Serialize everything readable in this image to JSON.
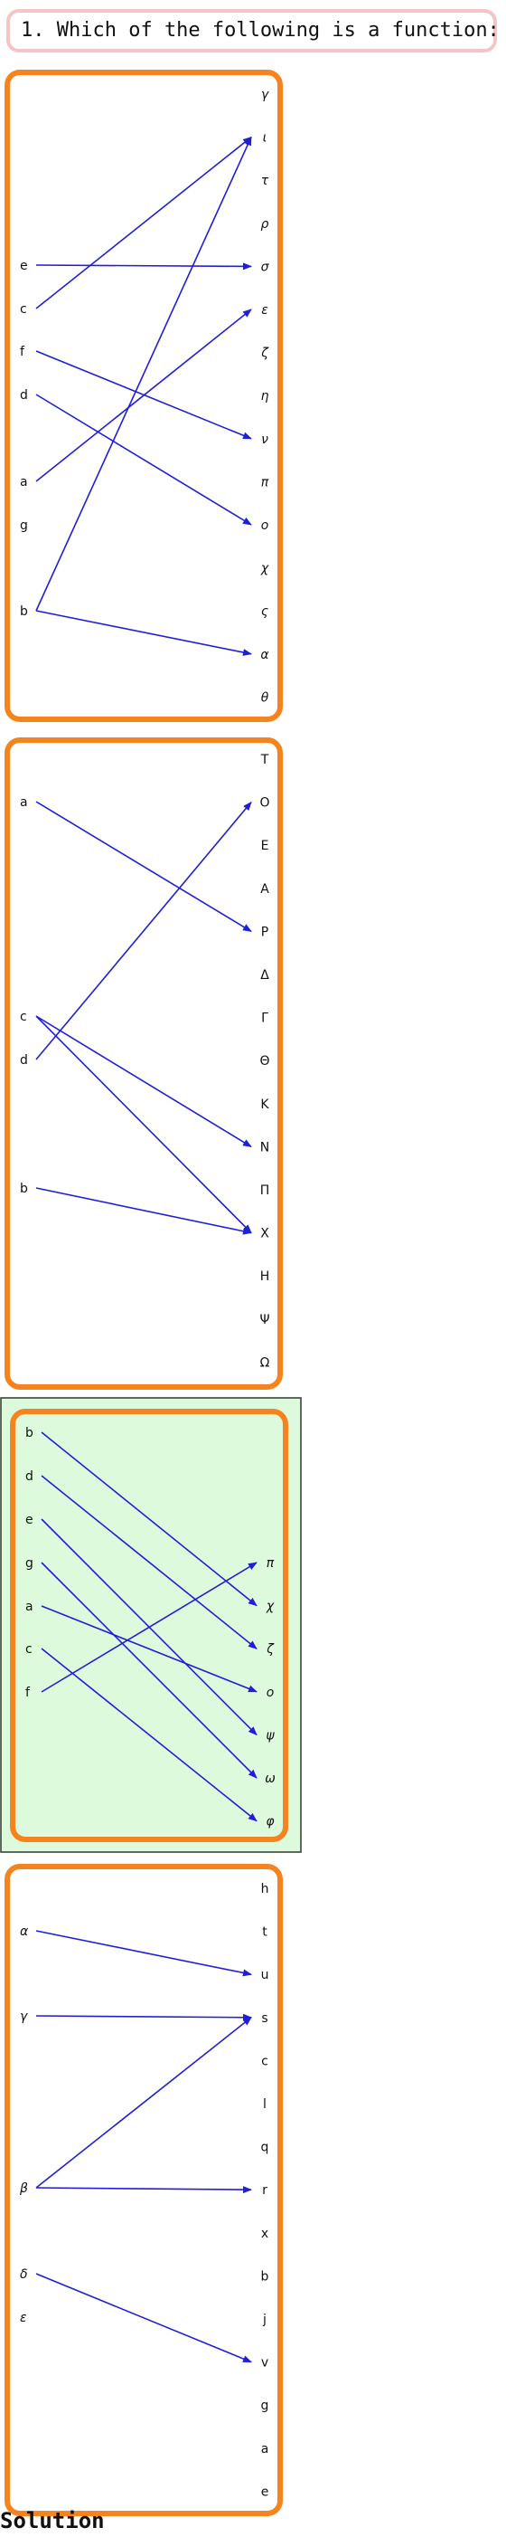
{
  "question": "1. Which of the following is a function:",
  "solution_label": "Solution",
  "colors": {
    "frame": "#f5841f",
    "arrow": "#1f1fd6",
    "highlight_bg": "#ddfadd",
    "question_border": "#f5c4c4"
  },
  "diagrams": [
    {
      "highlighted": false,
      "domain": [
        "e",
        "c",
        "f",
        "d",
        "a",
        "g",
        "b"
      ],
      "codomain": [
        "γ",
        "ι",
        "τ",
        "ρ",
        "σ",
        "ε",
        "ζ",
        "η",
        "ν",
        "π",
        "o",
        "χ",
        "ς",
        "α",
        "θ"
      ],
      "italic_codomain": true,
      "italic_domain": false,
      "mappings": [
        [
          "e",
          "σ"
        ],
        [
          "c",
          "ι"
        ],
        [
          "f",
          "ν"
        ],
        [
          "d",
          "o"
        ],
        [
          "a",
          "ε"
        ],
        [
          "b",
          "ι"
        ],
        [
          "b",
          "α"
        ]
      ]
    },
    {
      "highlighted": false,
      "domain": [
        "a",
        "c",
        "d",
        "b"
      ],
      "codomain": [
        "T",
        "O",
        "E",
        "A",
        "P",
        "Δ",
        "Γ",
        "Θ",
        "K",
        "N",
        "Π",
        "X",
        "H",
        "Ψ",
        "Ω"
      ],
      "italic_codomain": false,
      "italic_domain": false,
      "mappings": [
        [
          "a",
          "P"
        ],
        [
          "c",
          "N"
        ],
        [
          "c",
          "X"
        ],
        [
          "d",
          "O"
        ],
        [
          "b",
          "X"
        ]
      ]
    },
    {
      "highlighted": true,
      "domain": [
        "b",
        "d",
        "e",
        "g",
        "a",
        "c",
        "f"
      ],
      "codomain": [
        "π",
        "χ",
        "ζ",
        "o",
        "ψ",
        "ω",
        "φ"
      ],
      "italic_codomain": true,
      "italic_domain": false,
      "mappings": [
        [
          "b",
          "χ"
        ],
        [
          "d",
          "ζ"
        ],
        [
          "e",
          "ψ"
        ],
        [
          "g",
          "ω"
        ],
        [
          "a",
          "o"
        ],
        [
          "c",
          "φ"
        ],
        [
          "f",
          "π"
        ]
      ]
    },
    {
      "highlighted": false,
      "domain": [
        "α",
        "γ",
        "β",
        "δ",
        "ε"
      ],
      "codomain": [
        "h",
        "t",
        "u",
        "s",
        "c",
        "l",
        "q",
        "r",
        "x",
        "b",
        "j",
        "v",
        "g",
        "a",
        "e"
      ],
      "italic_codomain": false,
      "italic_domain": true,
      "mappings": [
        [
          "α",
          "u"
        ],
        [
          "γ",
          "s"
        ],
        [
          "β",
          "s"
        ],
        [
          "β",
          "r"
        ],
        [
          "δ",
          "v"
        ]
      ]
    }
  ]
}
